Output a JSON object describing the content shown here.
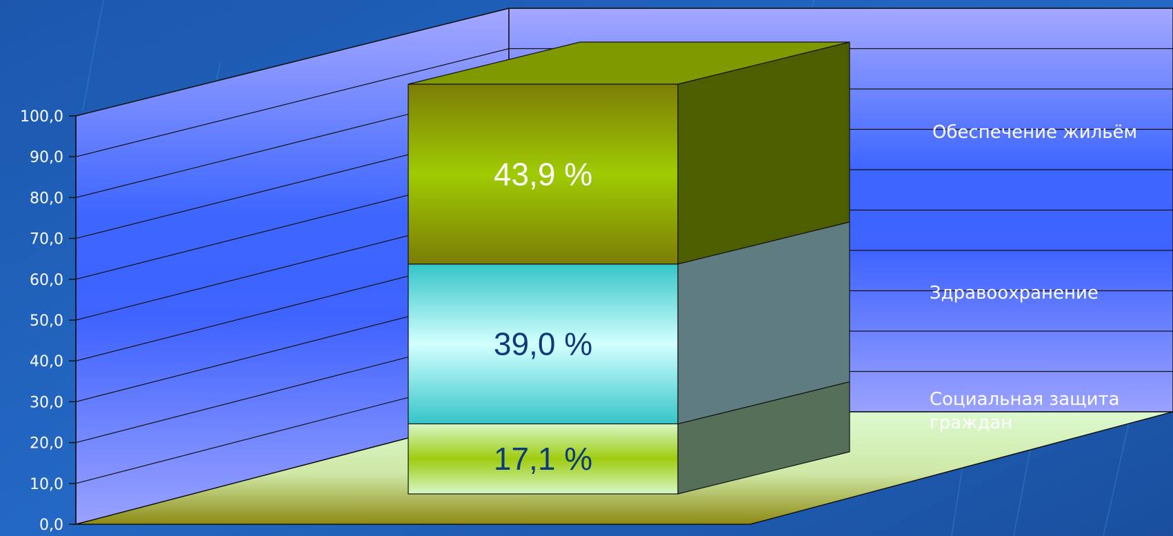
{
  "chart_data": {
    "type": "bar",
    "stacked": true,
    "three_d": true,
    "categories": [
      ""
    ],
    "series": [
      {
        "name": "Социальная защита граждан",
        "values": [
          17.1
        ],
        "label": "17,1 %"
      },
      {
        "name": "Здравоохранение",
        "values": [
          39.0
        ],
        "label": "39,0 %"
      },
      {
        "name": "Обеспечение жильём",
        "values": [
          43.9
        ],
        "label": "43,9 %"
      }
    ],
    "ylim": [
      0,
      100
    ],
    "yticks": [
      "0,0",
      "10,0",
      "20,0",
      "30,0",
      "40,0",
      "50,0",
      "60,0",
      "70,0",
      "80,0",
      "90,0",
      "100,0"
    ],
    "grid": true,
    "legend": "right",
    "colors": {
      "background": "#1f5fb8",
      "back_wall": "#6f86f2",
      "floor": "#c8f5b0",
      "segment_bottom": "#c7f2b3",
      "segment_middle": "#c6fbfb",
      "segment_top": "#9ac70a",
      "label_dark": "#0d3b7a",
      "label_light": "#ffffff"
    }
  }
}
